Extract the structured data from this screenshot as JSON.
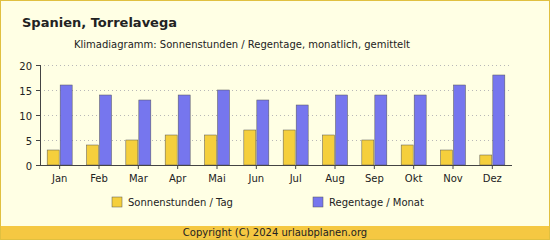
{
  "chart_data": {
    "type": "bar",
    "title": "Spanien, Torrelavega",
    "subtitle": "Klimadiagramm: Sonnenstunden / Regentage, monatlich, gemittelt",
    "annotations": [
      "Copyright (C) 2024 urlaubplanen.org"
    ],
    "categories": [
      "Jan",
      "Feb",
      "Mar",
      "Apr",
      "Mai",
      "Jun",
      "Jul",
      "Aug",
      "Sep",
      "Okt",
      "Nov",
      "Dez"
    ],
    "series": [
      {
        "name": "Sonnenstunden / Tag",
        "color": "#f5cf3c",
        "values": [
          3,
          4,
          5,
          6,
          6,
          7,
          7,
          6,
          5,
          4,
          3,
          2
        ]
      },
      {
        "name": "Regentage / Monat",
        "color": "#7676ee",
        "values": [
          16,
          14,
          13,
          14,
          15,
          13,
          12,
          14,
          14,
          14,
          16,
          18
        ]
      }
    ],
    "ylim": [
      0,
      20
    ],
    "yticks": [
      0,
      5,
      10,
      15,
      20
    ],
    "grid": true,
    "legend": "bottom"
  }
}
